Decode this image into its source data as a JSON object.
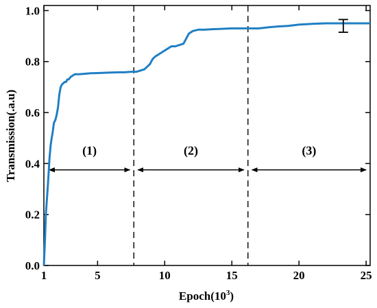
{
  "chart_data": {
    "type": "line",
    "title": "",
    "xlabel_main": "Epoch(10",
    "xlabel_exp": "3",
    "xlabel_close": ")",
    "ylabel": "Transmission(.a.u)",
    "xlim": [
      1,
      25.3
    ],
    "ylim": [
      0,
      1.02
    ],
    "xticks": [
      "1",
      "5",
      "10",
      "15",
      "20",
      "25"
    ],
    "xtick_values": [
      1,
      5,
      10,
      15,
      20,
      25
    ],
    "yticks": [
      "0.0",
      "0.2",
      "0.4",
      "0.6",
      "0.8",
      "1.0"
    ],
    "ytick_values": [
      0,
      0.2,
      0.4,
      0.6,
      0.8,
      1.0
    ],
    "line_color": "#1f7fc4",
    "series": [
      {
        "x": [
          1.0,
          1.08,
          1.15,
          1.2,
          1.28,
          1.35,
          1.42,
          1.5,
          1.58,
          1.65,
          1.75,
          1.85,
          1.95,
          2.05,
          2.15,
          2.25,
          2.35,
          2.45,
          2.55,
          2.65,
          2.75,
          2.85,
          3.0,
          3.3,
          3.6,
          4.0,
          4.5,
          5.0,
          5.5,
          6.0,
          6.5,
          7.0,
          7.5,
          7.9,
          8.2,
          8.5,
          8.7,
          8.9,
          9.1,
          9.3,
          9.6,
          9.9,
          10.2,
          10.5,
          10.8,
          11.1,
          11.4,
          11.6,
          11.8,
          12.1,
          12.5,
          13.0,
          13.5,
          14.0,
          15.0,
          16.0,
          17.0,
          17.8,
          18.5,
          19.2,
          20.0,
          21.0,
          22.0,
          23.0,
          24.0,
          25.3
        ],
        "y": [
          0.0,
          0.1,
          0.2,
          0.24,
          0.3,
          0.36,
          0.42,
          0.47,
          0.5,
          0.52,
          0.56,
          0.57,
          0.59,
          0.62,
          0.67,
          0.7,
          0.71,
          0.715,
          0.72,
          0.72,
          0.73,
          0.73,
          0.74,
          0.75,
          0.75,
          0.752,
          0.754,
          0.755,
          0.756,
          0.757,
          0.758,
          0.758,
          0.76,
          0.76,
          0.765,
          0.77,
          0.78,
          0.79,
          0.81,
          0.82,
          0.83,
          0.84,
          0.85,
          0.86,
          0.86,
          0.865,
          0.87,
          0.89,
          0.91,
          0.92,
          0.925,
          0.925,
          0.927,
          0.928,
          0.93,
          0.93,
          0.93,
          0.935,
          0.938,
          0.94,
          0.945,
          0.948,
          0.95,
          0.95,
          0.95,
          0.95
        ]
      }
    ],
    "dividers": [
      7.7,
      16.2
    ],
    "error_bar": {
      "x": 23.3,
      "y": 0.94,
      "low": 0.915,
      "high": 0.965
    },
    "regions": [
      {
        "label": "(1)",
        "x_start": 1.4,
        "x_end": 7.4,
        "y": 0.375,
        "label_y": 0.435
      },
      {
        "label": "(2)",
        "x_start": 8.0,
        "x_end": 15.9,
        "y": 0.375,
        "label_y": 0.435
      },
      {
        "label": "(3)",
        "x_start": 16.5,
        "x_end": 25.0,
        "y": 0.375,
        "label_y": 0.435
      }
    ]
  }
}
